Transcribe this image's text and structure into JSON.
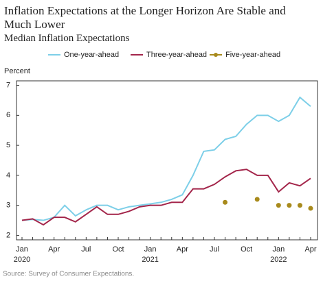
{
  "chart_data": {
    "type": "line",
    "title": "Inflation Expectations at the Longer Horizon Are Stable and Much Lower",
    "subtitle": "Median Inflation Expectations",
    "y_label": "Percent",
    "source": "Source: Survey of Consumer Expectations.",
    "categories": [
      "Jan 2020",
      null,
      null,
      "Apr",
      null,
      null,
      "Jul",
      null,
      null,
      "Oct",
      null,
      null,
      "Jan 2021",
      null,
      null,
      "Apr",
      null,
      null,
      "Jul",
      null,
      null,
      "Oct",
      null,
      null,
      "Jan 2022",
      null,
      null,
      "Apr"
    ],
    "series": [
      {
        "name": "One-year-ahead",
        "color": "#7dcfe8",
        "style": "line",
        "values": [
          2.5,
          2.53,
          2.5,
          2.6,
          3.0,
          2.65,
          2.85,
          3.0,
          3.0,
          2.85,
          2.95,
          3.0,
          3.05,
          3.1,
          3.2,
          3.35,
          4.0,
          4.8,
          4.85,
          5.2,
          5.3,
          5.7,
          6.0,
          6.0,
          5.8,
          6.0,
          6.6,
          6.3
        ]
      },
      {
        "name": "Three-year-ahead",
        "color": "#a3254a",
        "style": "line",
        "values": [
          2.5,
          2.55,
          2.35,
          2.6,
          2.6,
          2.45,
          2.7,
          2.95,
          2.7,
          2.7,
          2.8,
          2.95,
          3.0,
          3.0,
          3.1,
          3.1,
          3.55,
          3.55,
          3.7,
          3.95,
          4.15,
          4.2,
          4.0,
          4.0,
          3.45,
          3.75,
          3.65,
          3.9
        ]
      },
      {
        "name": "Five-year-ahead",
        "color": "#a88a1c",
        "style": "markers",
        "values": [
          null,
          null,
          null,
          null,
          null,
          null,
          null,
          null,
          null,
          null,
          null,
          null,
          null,
          null,
          null,
          null,
          null,
          null,
          null,
          3.1,
          null,
          null,
          3.2,
          null,
          3.0,
          3.0,
          3.0,
          2.9
        ]
      }
    ],
    "ylim": [
      1.85,
      7.15
    ],
    "yticks": [
      2,
      3,
      4,
      5,
      6,
      7
    ],
    "grid": false
  }
}
